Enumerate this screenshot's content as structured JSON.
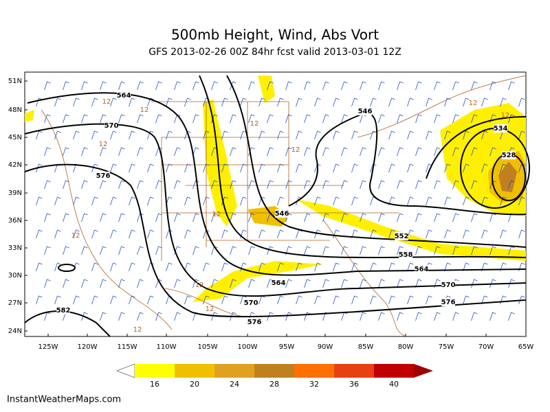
{
  "header": {
    "title": "500mb Height, Wind, Abs Vort",
    "subtitle": "GFS 2013-02-26 00Z 84hr fcst valid 2013-03-01 12Z"
  },
  "map": {
    "lat_labels": [
      "51N",
      "48N",
      "45N",
      "42N",
      "39N",
      "36N",
      "33N",
      "30N",
      "27N",
      "24N"
    ],
    "lon_labels": [
      "125W",
      "120W",
      "115W",
      "110W",
      "105W",
      "100W",
      "95W",
      "90W",
      "85W",
      "80W",
      "75W",
      "70W",
      "65W"
    ],
    "contour_labels": [
      "564",
      "570",
      "576",
      "582",
      "546",
      "534",
      "528",
      "546",
      "552",
      "558",
      "564",
      "570",
      "576",
      "564",
      "570",
      "576"
    ],
    "vorticity_labels": [
      "12",
      "12",
      "12",
      "12",
      "12",
      "12",
      "12",
      "12",
      "12",
      "12",
      "12",
      "12"
    ]
  },
  "colorbar": {
    "labels": [
      "16",
      "20",
      "24",
      "28",
      "32",
      "36",
      "40"
    ]
  },
  "footer": "InstantWeatherMaps.com"
}
